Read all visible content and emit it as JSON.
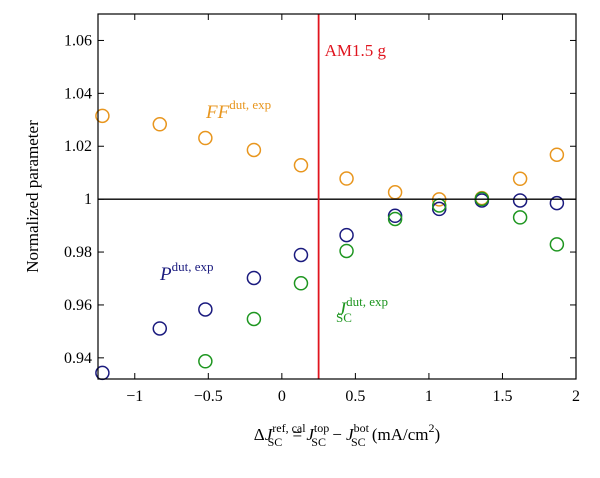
{
  "chart_data": {
    "type": "scatter",
    "title": "",
    "xlabel": {
      "prefix": "ΔJ",
      "sub": "SC",
      "sup": "ref, cal",
      "eq": " = J",
      "sub2": "SC",
      "sup2": "top",
      "minus": " − J",
      "sub3": "SC",
      "sup3": "bot",
      "unit": " (mA/cm",
      "unit_sup": "2",
      "unit_end": ")"
    },
    "ylabel": "Normalized parameter",
    "xlim": [
      -1.25,
      2.0
    ],
    "ylim": [
      0.932,
      1.07
    ],
    "x_ticks": [
      -1,
      -0.5,
      0,
      0.5,
      1,
      1.5,
      2
    ],
    "x_tick_labels": [
      "−1",
      "−0.5",
      "0",
      "0.5",
      "1",
      "1.5",
      "2"
    ],
    "y_ticks": [
      0.94,
      0.96,
      0.98,
      1.0,
      1.02,
      1.04,
      1.06
    ],
    "y_tick_labels": [
      "0.94",
      "0.96",
      "0.98",
      "1",
      "1.02",
      "1.04",
      "1.06"
    ],
    "grid": false,
    "reference_lines": {
      "horizontal": {
        "y": 1.0,
        "color": "#000000"
      },
      "vertical": {
        "x": 0.25,
        "color": "#e0141e",
        "label": "AM1.5 g"
      }
    },
    "series": [
      {
        "name": "FF",
        "name_sup": "dut, exp",
        "color": "#e8961e",
        "label_italic": true,
        "points": [
          [
            -1.22,
            1.0315
          ],
          [
            -0.83,
            1.0283
          ],
          [
            -0.52,
            1.0231
          ],
          [
            -0.19,
            1.0186
          ],
          [
            0.13,
            1.0128
          ],
          [
            0.44,
            1.0078
          ],
          [
            0.77,
            1.0026
          ],
          [
            1.07,
            0.9999
          ],
          [
            1.36,
            1.0004
          ],
          [
            1.62,
            1.0077
          ],
          [
            1.87,
            1.0168
          ]
        ]
      },
      {
        "name": "P",
        "name_sup": "dut, exp",
        "color": "#1a1a7e",
        "label_italic": true,
        "points": [
          [
            -1.22,
            0.9343
          ],
          [
            -0.83,
            0.9511
          ],
          [
            -0.52,
            0.9583
          ],
          [
            -0.19,
            0.9702
          ],
          [
            0.13,
            0.9789
          ],
          [
            0.44,
            0.9864
          ],
          [
            0.77,
            0.9937
          ],
          [
            1.07,
            0.9963
          ],
          [
            1.36,
            0.9995
          ],
          [
            1.62,
            0.9995
          ],
          [
            1.87,
            0.9985
          ]
        ]
      },
      {
        "name": "J",
        "name_sub": "SC",
        "name_sup": "dut, exp",
        "color": "#1e9620",
        "label_italic": true,
        "points": [
          [
            -0.52,
            0.9387
          ],
          [
            -0.19,
            0.9547
          ],
          [
            0.13,
            0.9682
          ],
          [
            0.44,
            0.9804
          ],
          [
            0.77,
            0.9925
          ],
          [
            1.07,
            0.9976
          ],
          [
            1.36,
            1.0001
          ],
          [
            1.62,
            0.9931
          ],
          [
            1.87,
            0.9829
          ]
        ]
      }
    ]
  }
}
